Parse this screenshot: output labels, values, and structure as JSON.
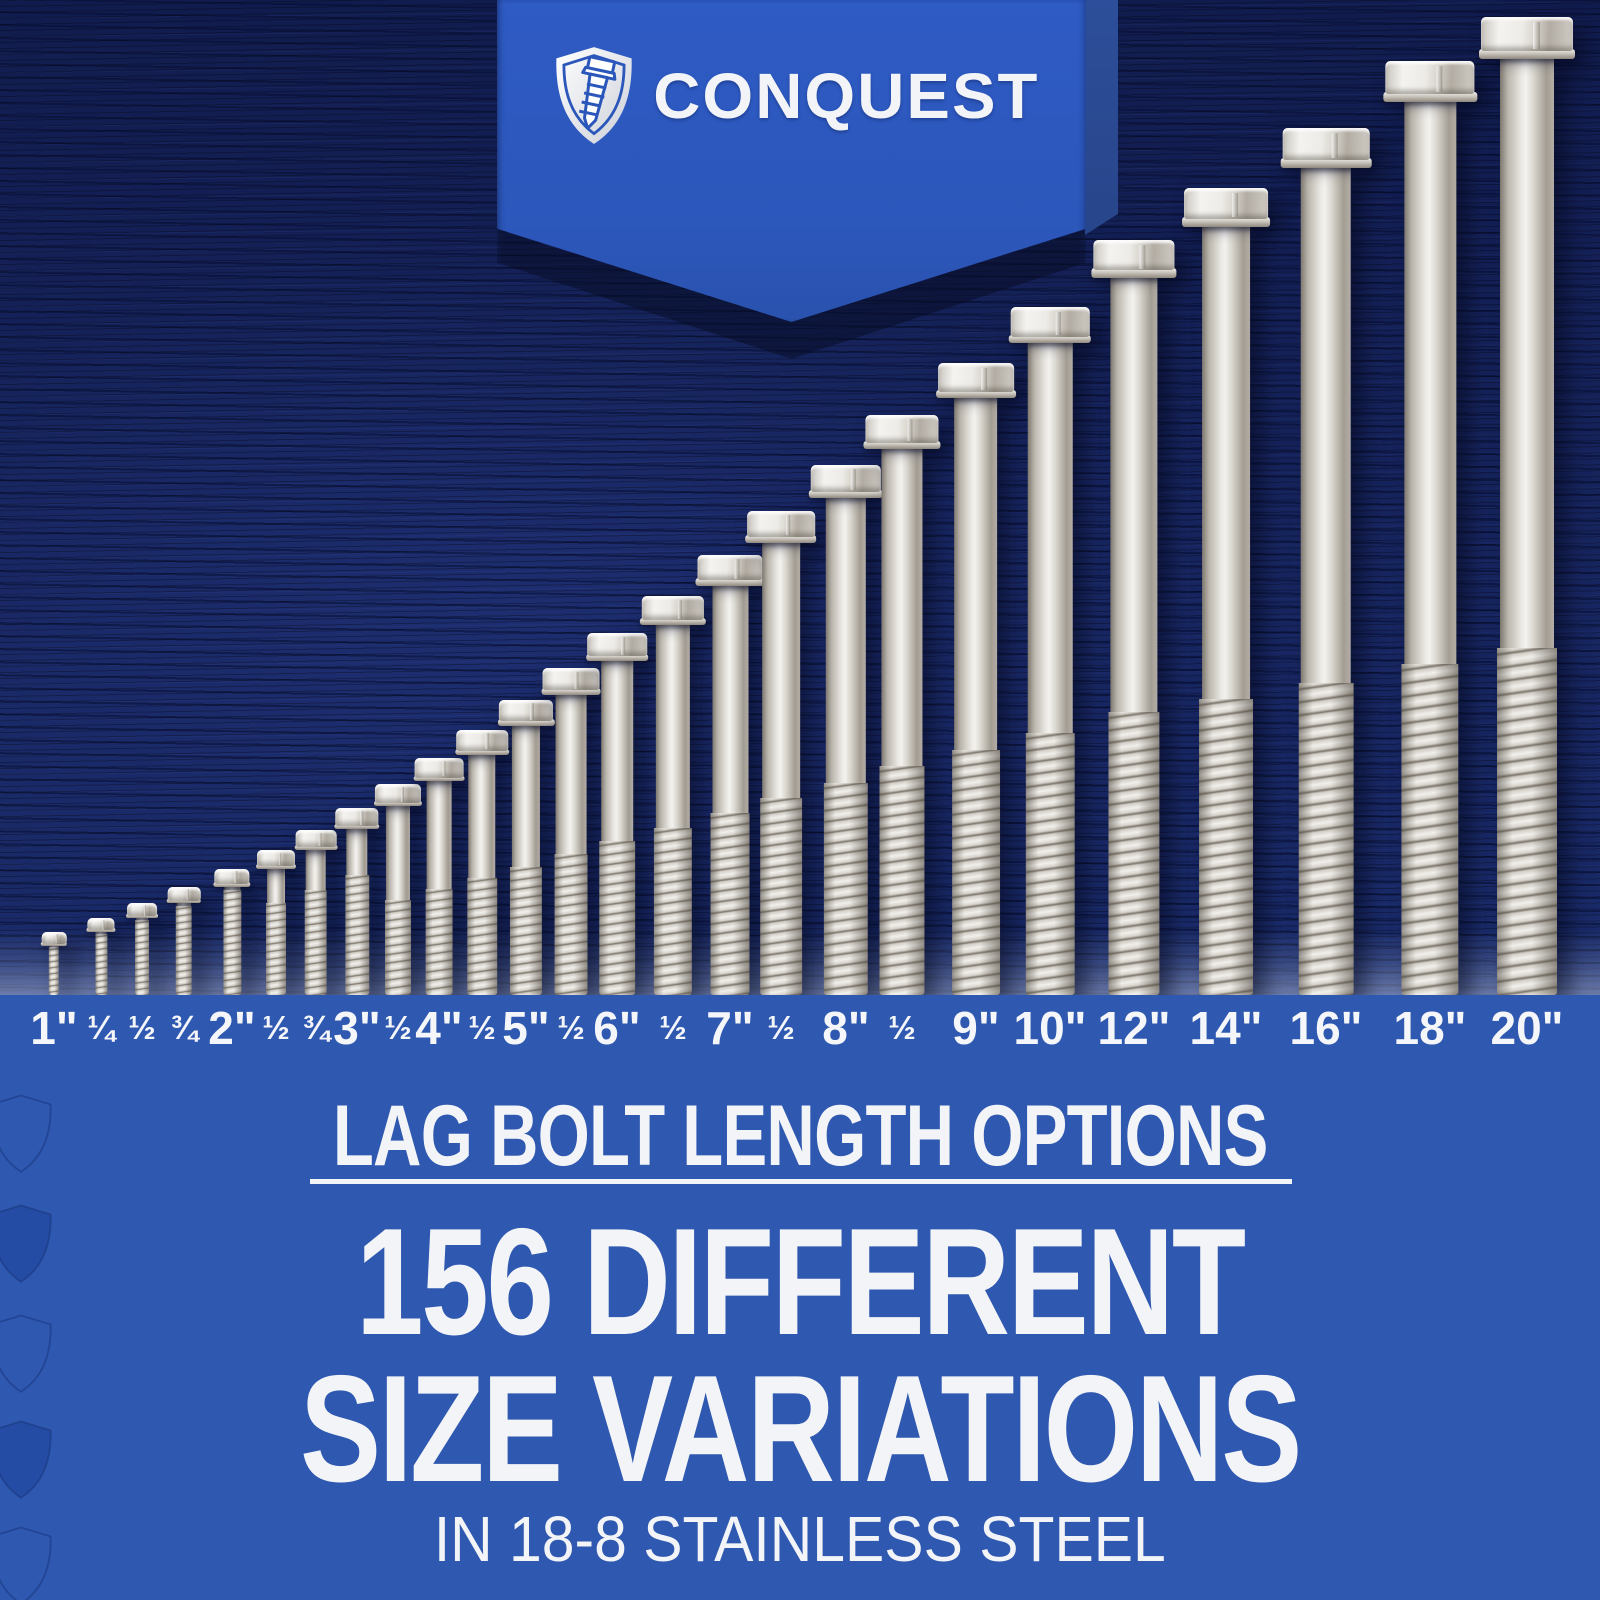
{
  "brand": {
    "name": "CONQUEST",
    "icon": "shield-with-lag-screw"
  },
  "lineup": {
    "sizes": [
      {
        "label": "1\"",
        "inches": 1,
        "type": "major"
      },
      {
        "label": "¼",
        "inches": 1.25,
        "type": "minor"
      },
      {
        "label": "½",
        "inches": 1.5,
        "type": "minor"
      },
      {
        "label": "¾",
        "inches": 1.75,
        "type": "minor"
      },
      {
        "label": "2\"",
        "inches": 2,
        "type": "major"
      },
      {
        "label": "½",
        "inches": 2.5,
        "type": "minor"
      },
      {
        "label": "¾",
        "inches": 2.75,
        "type": "minor"
      },
      {
        "label": "3\"",
        "inches": 3,
        "type": "major"
      },
      {
        "label": "½",
        "inches": 3.5,
        "type": "minor"
      },
      {
        "label": "4\"",
        "inches": 4,
        "type": "major"
      },
      {
        "label": "½",
        "inches": 4.5,
        "type": "minor"
      },
      {
        "label": "5\"",
        "inches": 5,
        "type": "major"
      },
      {
        "label": "½",
        "inches": 5.5,
        "type": "minor"
      },
      {
        "label": "6\"",
        "inches": 6,
        "type": "major"
      },
      {
        "label": "½",
        "inches": 6.5,
        "type": "minor"
      },
      {
        "label": "7\"",
        "inches": 7,
        "type": "major"
      },
      {
        "label": "½",
        "inches": 7.5,
        "type": "minor"
      },
      {
        "label": "8\"",
        "inches": 8,
        "type": "major"
      },
      {
        "label": "½",
        "inches": 8.5,
        "type": "minor"
      },
      {
        "label": "9\"",
        "inches": 9,
        "type": "major"
      },
      {
        "label": "10\"",
        "inches": 10,
        "type": "major"
      },
      {
        "label": "12\"",
        "inches": 12,
        "type": "major"
      },
      {
        "label": "14\"",
        "inches": 14,
        "type": "major"
      },
      {
        "label": "16\"",
        "inches": 16,
        "type": "major"
      },
      {
        "label": "18\"",
        "inches": 18,
        "type": "major"
      },
      {
        "label": "20\"",
        "inches": 20,
        "type": "major"
      }
    ]
  },
  "panel": {
    "heading": "LAG BOLT LENGTH OPTIONS",
    "headline_line1": "156 DIFFERENT",
    "headline_line2": "SIZE VARIATIONS",
    "subheadline": "IN 18-8 STAINLESS STEEL"
  },
  "colors": {
    "ribbon_blue": "#2c57bb",
    "panel_blue": "#2f58b0",
    "wood_navy": "#15235a",
    "text_white": "#f3f4f7",
    "steel_light": "#f2f1ed",
    "steel_dark": "#837d73"
  }
}
